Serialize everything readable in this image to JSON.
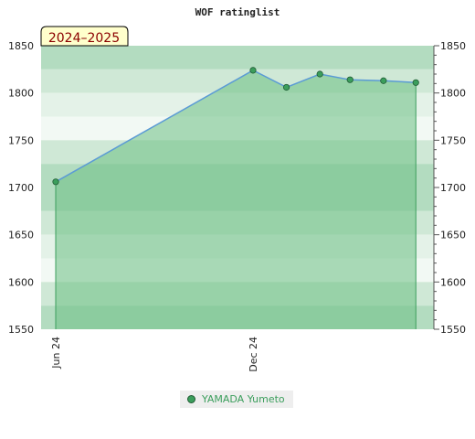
{
  "chart_data": {
    "type": "area",
    "title": "WOF ratinglist",
    "season_label": "2024–2025",
    "x": [
      "2024-06-01",
      "2024-12-01",
      "2025-01-01",
      "2025-02-01",
      "2025-03-01",
      "2025-04-01",
      "2025-05-01"
    ],
    "x_tick_labels": [
      {
        "label": "Jun 24",
        "date": "2024-06-01"
      },
      {
        "label": "Dec 24",
        "date": "2024-12-01"
      }
    ],
    "series": [
      {
        "name": "YAMADA Yumeto",
        "values": [
          1706,
          1824,
          1806,
          1820,
          1814,
          1813,
          1811
        ]
      }
    ],
    "ylim": [
      1550,
      1850
    ],
    "y_ticks": [
      1550,
      1600,
      1650,
      1700,
      1750,
      1800,
      1850
    ],
    "grid": "alternating horizontal bands",
    "legend_position": "bottom-center",
    "colors": {
      "line": "#5b9bd5",
      "area": "#6cbf84",
      "marker": "#3b9e5c",
      "badge_fill": "#ffffcc",
      "badge_text": "#8b0000",
      "legend_text": "#3b9e5c"
    }
  }
}
